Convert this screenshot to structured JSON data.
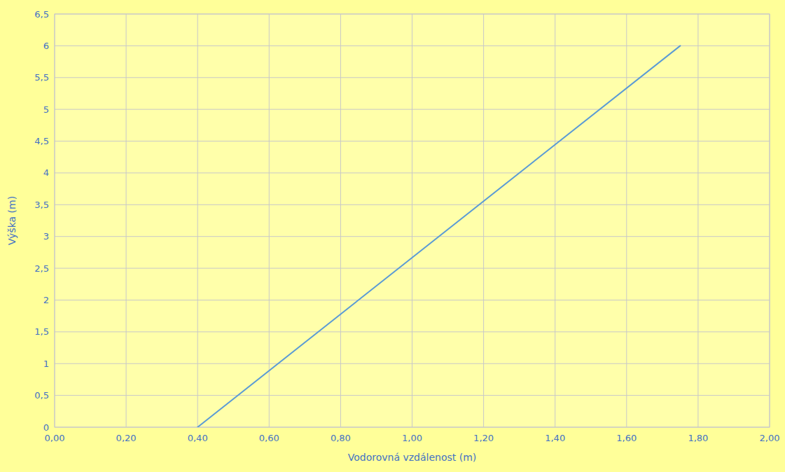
{
  "chart_data": {
    "type": "line",
    "x": [
      0.4,
      1.75
    ],
    "values": [
      0.0,
      6.0
    ],
    "color": "#5B9BD5",
    "xlabel": "Vodorovná vzdálenost (m)",
    "ylabel": "Výška (m)",
    "xlim": [
      0.0,
      2.0
    ],
    "ylim": [
      0.0,
      6.5
    ],
    "xticks": [
      {
        "value": 0.0,
        "label": "0,00"
      },
      {
        "value": 0.2,
        "label": "0,20"
      },
      {
        "value": 0.4,
        "label": "0,40"
      },
      {
        "value": 0.6,
        "label": "0,60"
      },
      {
        "value": 0.8,
        "label": "0,80"
      },
      {
        "value": 1.0,
        "label": "1,00"
      },
      {
        "value": 1.2,
        "label": "1,20"
      },
      {
        "value": 1.4,
        "label": "1,40"
      },
      {
        "value": 1.6,
        "label": "1,60"
      },
      {
        "value": 1.8,
        "label": "1,80"
      },
      {
        "value": 2.0,
        "label": "2,00"
      }
    ],
    "yticks": [
      0,
      {
        "value": 0.5,
        "label": "0,5"
      },
      1,
      {
        "value": 1.5,
        "label": "1,5"
      },
      2,
      {
        "value": 2.5,
        "label": "2,5"
      },
      3,
      {
        "value": 3.5,
        "label": "3,5"
      },
      4,
      {
        "value": 4.5,
        "label": "4,5"
      },
      5,
      {
        "value": 5.5,
        "label": "5,5"
      },
      6,
      {
        "value": 6.5,
        "label": "6,5"
      }
    ],
    "grid": true
  }
}
